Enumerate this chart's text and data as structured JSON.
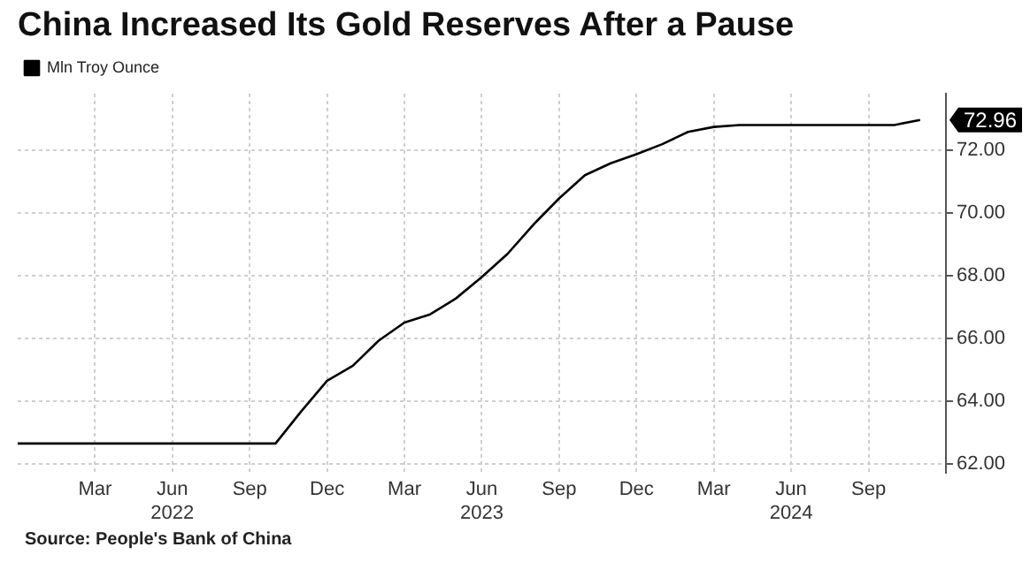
{
  "chart_data": {
    "type": "line",
    "title": "China Increased Its Gold Reserves After a Pause",
    "x": [
      "2021-12",
      "2022-01",
      "2022-02",
      "2022-03",
      "2022-04",
      "2022-05",
      "2022-06",
      "2022-07",
      "2022-08",
      "2022-09",
      "2022-10",
      "2022-11",
      "2022-12",
      "2023-01",
      "2023-02",
      "2023-03",
      "2023-04",
      "2023-05",
      "2023-06",
      "2023-07",
      "2023-08",
      "2023-09",
      "2023-10",
      "2023-11",
      "2023-12",
      "2024-01",
      "2024-02",
      "2024-03",
      "2024-04",
      "2024-05",
      "2024-06",
      "2024-07",
      "2024-08",
      "2024-09",
      "2024-10",
      "2024-11"
    ],
    "series": [
      {
        "name": "Mln Troy Ounce",
        "color": "#000000",
        "values": [
          62.64,
          62.64,
          62.64,
          62.64,
          62.64,
          62.64,
          62.64,
          62.64,
          62.64,
          62.64,
          62.64,
          63.67,
          64.64,
          65.12,
          65.92,
          66.5,
          66.76,
          67.27,
          67.95,
          68.69,
          69.62,
          70.46,
          71.2,
          71.58,
          71.87,
          72.19,
          72.58,
          72.74,
          72.8,
          72.8,
          72.8,
          72.8,
          72.8,
          72.8,
          72.8,
          72.96
        ]
      }
    ],
    "xlim": [
      "2021-12",
      "2024-12"
    ],
    "xticks": [
      {
        "value": "2022-03",
        "label": "Mar"
      },
      {
        "value": "2022-06",
        "label": "Jun\n2022"
      },
      {
        "value": "2022-09",
        "label": "Sep"
      },
      {
        "value": "2022-12",
        "label": "Dec"
      },
      {
        "value": "2023-03",
        "label": "Mar"
      },
      {
        "value": "2023-06",
        "label": "Jun\n2023"
      },
      {
        "value": "2023-09",
        "label": "Sep"
      },
      {
        "value": "2023-12",
        "label": "Dec"
      },
      {
        "value": "2024-03",
        "label": "Mar"
      },
      {
        "value": "2024-06",
        "label": "Jun\n2024"
      },
      {
        "value": "2024-09",
        "label": "Sep"
      }
    ],
    "ylim": [
      61.7,
      73.8
    ],
    "yticks": [
      {
        "value": 62,
        "label": "62.00"
      },
      {
        "value": 64,
        "label": "64.00"
      },
      {
        "value": 66,
        "label": "66.00"
      },
      {
        "value": 68,
        "label": "68.00"
      },
      {
        "value": 70,
        "label": "70.00"
      },
      {
        "value": 72,
        "label": "72.00"
      }
    ],
    "grid": true,
    "legend": "top left",
    "marker": "none",
    "line_style": "solid",
    "annotations": [
      {
        "text": "72.96",
        "x": "2024-11",
        "y": 72.96
      },
      "Source: People's Bank of China"
    ]
  }
}
